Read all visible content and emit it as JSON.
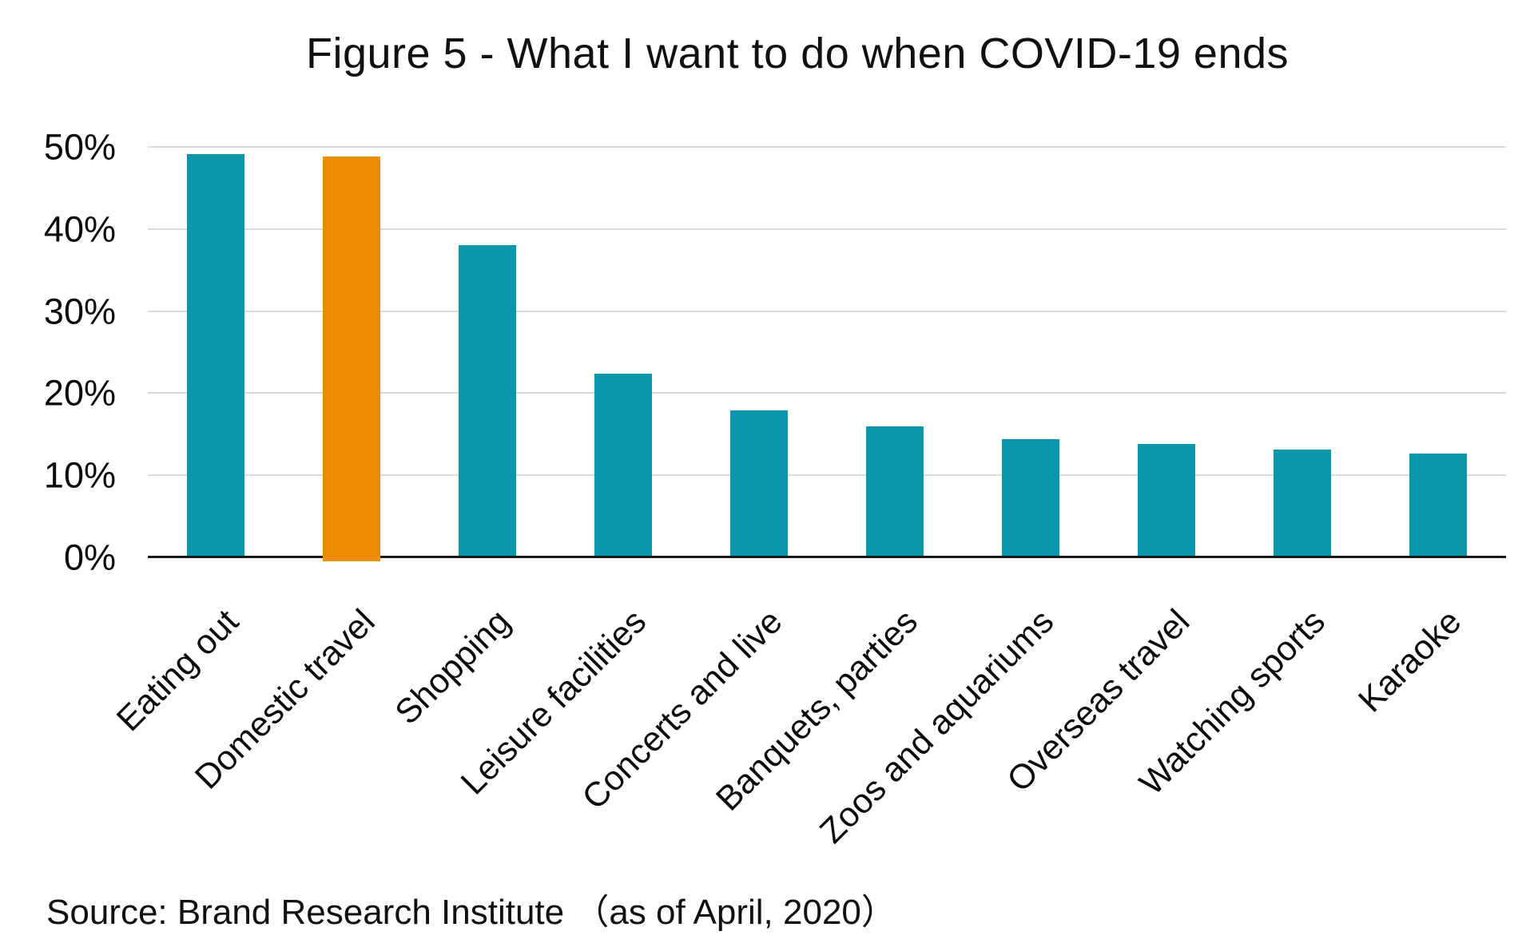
{
  "chart_data": {
    "type": "bar",
    "title": "Figure 5 - What I want to do when COVID-19 ends",
    "categories": [
      "Eating out",
      "Domestic travel",
      "Shopping",
      "Leisure facilities",
      "Concerts and live",
      "Banquets, parties",
      "Zoos and aquariums",
      "Overseas travel",
      "Watching sports",
      "Karaoke"
    ],
    "values": [
      49.1,
      48.8,
      38,
      22.4,
      17.9,
      16,
      14.4,
      13.8,
      13.1,
      12.6
    ],
    "unit": "%",
    "xlabel": "",
    "ylabel": "",
    "ylim": [
      0,
      50
    ],
    "y_ticks": [
      {
        "label": "0%",
        "value": 0
      },
      {
        "label": "10%",
        "value": 10
      },
      {
        "label": "20%",
        "value": 20
      },
      {
        "label": "30%",
        "value": 30
      },
      {
        "label": "40%",
        "value": 40
      },
      {
        "label": "50%",
        "value": 50
      }
    ],
    "grid": "horizontal",
    "legend": "none",
    "highlight_index": 1,
    "highlight_category": "Domestic travel",
    "colors": {
      "bar": "#0a96ab",
      "highlight": "#ec8a00",
      "gridline": "#d9d9d9",
      "axis_line": "#1a1a1a",
      "text": "#000000"
    },
    "source": "Source: Brand Research Institute （as of April, 2020）"
  }
}
